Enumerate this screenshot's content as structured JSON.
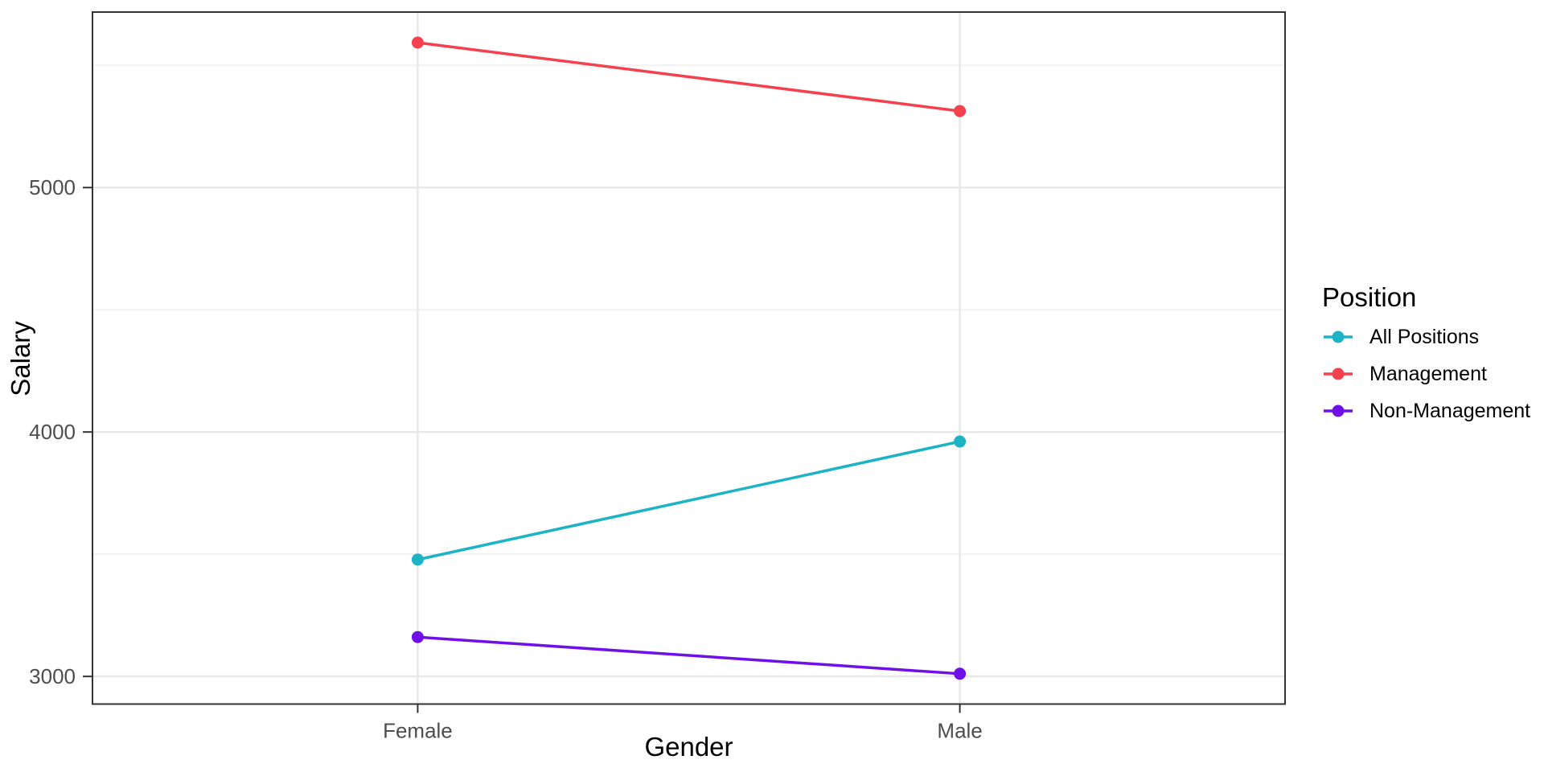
{
  "chart_data": {
    "type": "line",
    "title": "",
    "xlabel": "Gender",
    "ylabel": "Salary",
    "categories": [
      "Female",
      "Male"
    ],
    "series": [
      {
        "name": "All Positions",
        "color": "#1CB3C5",
        "values": [
          3478,
          3961
        ]
      },
      {
        "name": "Management",
        "color": "#F5404E",
        "values": [
          5593,
          5313
        ]
      },
      {
        "name": "Non-Management",
        "color": "#6F10E8",
        "values": [
          3161,
          3011
        ]
      }
    ],
    "legend": {
      "title": "Position",
      "position": "right"
    },
    "y_ticks": [
      3000,
      4000,
      5000
    ],
    "y_minor_ticks": [
      3500,
      4500,
      5500
    ],
    "ylim": [
      2887,
      5718
    ],
    "grid": true,
    "legend_key": "line-with-point",
    "styles": {
      "grid_major_color": "#E8E8E8",
      "grid_minor_color": "#F1F1F1",
      "panel_border_color": "#333333",
      "tick_color": "#333333",
      "tick_label_color": "#4D4D4D",
      "axis_title_color": "#000000",
      "background": "#FFFFFF"
    }
  }
}
